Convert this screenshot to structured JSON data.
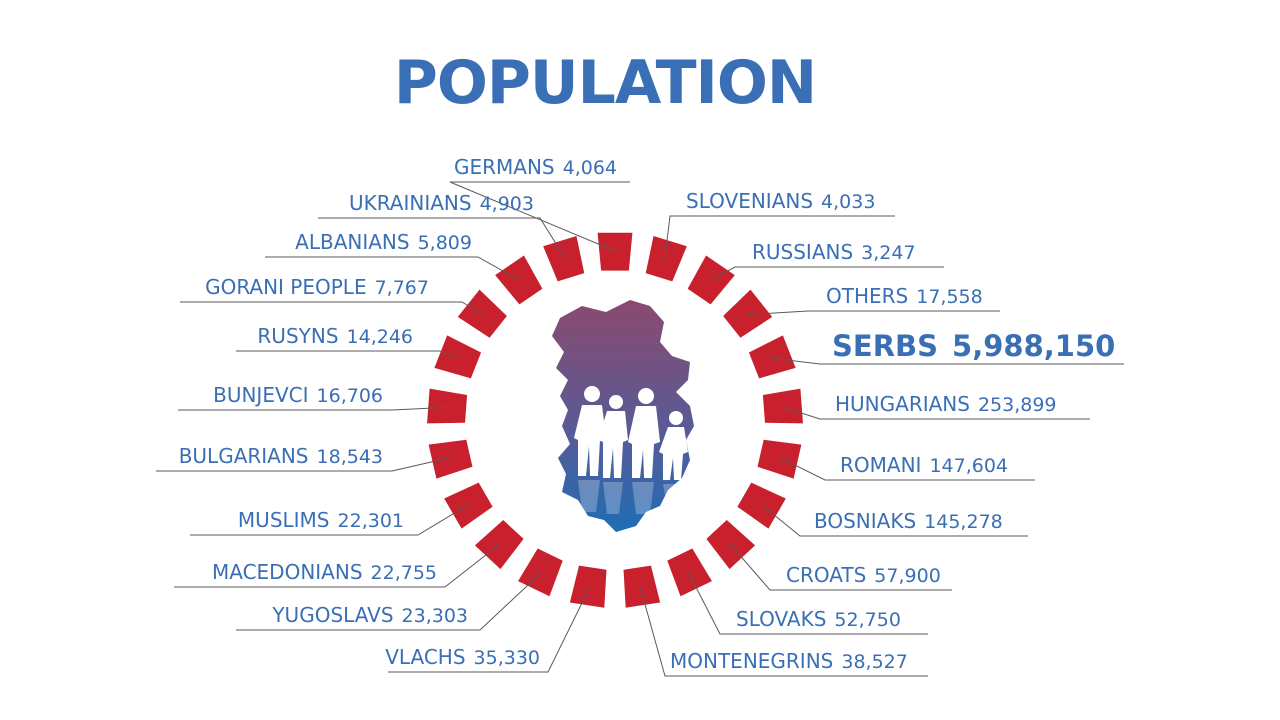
{
  "title": "POPULATION",
  "colors": {
    "text": "#3a6fb6",
    "segment": "#c8202c",
    "leader": "#5a5a5a",
    "map_top": "#8a4a6e",
    "map_bottom": "#1f6db5"
  },
  "groups": [
    {
      "name": "GERMANS",
      "value": "4,064"
    },
    {
      "name": "SLOVENIANS",
      "value": "4,033"
    },
    {
      "name": "RUSSIANS",
      "value": "3,247"
    },
    {
      "name": "OTHERS",
      "value": "17,558"
    },
    {
      "name": "SERBS",
      "value": "5,988,150"
    },
    {
      "name": "HUNGARIANS",
      "value": "253,899"
    },
    {
      "name": "ROMANI",
      "value": "147,604"
    },
    {
      "name": "BOSNIAKS",
      "value": "145,278"
    },
    {
      "name": "CROATS",
      "value": "57,900"
    },
    {
      "name": "SLOVAKS",
      "value": "52,750"
    },
    {
      "name": "MONTENEGRINS",
      "value": "38,527"
    },
    {
      "name": "VLACHS",
      "value": "35,330"
    },
    {
      "name": "YUGOSLAVS",
      "value": "23,303"
    },
    {
      "name": "MACEDONIANS",
      "value": "22,755"
    },
    {
      "name": "MUSLIMS",
      "value": "22,301"
    },
    {
      "name": "BULGARIANS",
      "value": "18,543"
    },
    {
      "name": "BUNJEVCI",
      "value": "16,706"
    },
    {
      "name": "RUSYNS",
      "value": "14,246"
    },
    {
      "name": "GORANI PEOPLE",
      "value": "7,767"
    },
    {
      "name": "ALBANIANS",
      "value": "5,809"
    },
    {
      "name": "UKRAINIANS",
      "value": "4,903"
    }
  ]
}
